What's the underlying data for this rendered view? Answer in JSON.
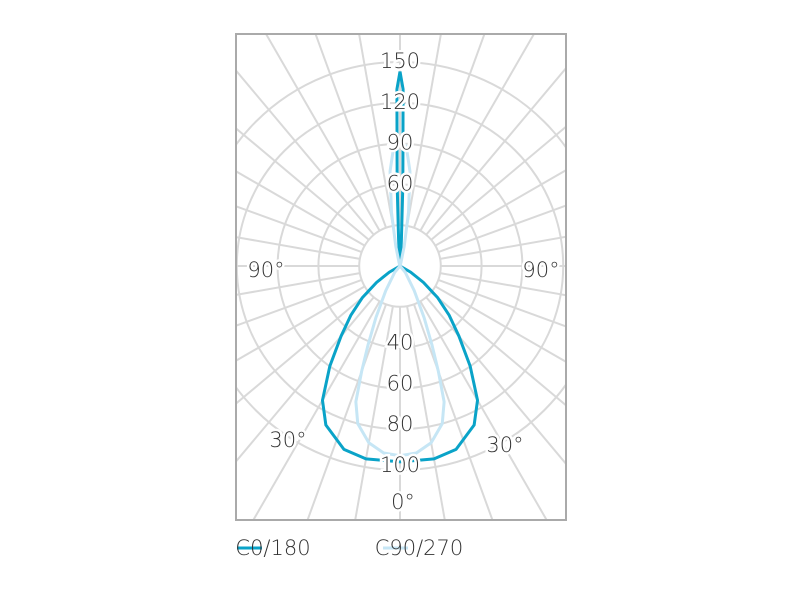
{
  "chart_data": {
    "type": "polar",
    "upper_rlim": [
      0,
      150
    ],
    "upper_rticks": [
      60,
      90,
      120,
      150
    ],
    "lower_rlim": [
      0,
      100
    ],
    "lower_rticks": [
      40,
      60,
      80,
      100
    ],
    "angle_labels": [
      "90°",
      "90°",
      "30°",
      "30°",
      "0°"
    ],
    "series": [
      {
        "name": "C0/180",
        "color": "#0aa3c8",
        "lower_angles": [
          0,
          10,
          17,
          25,
          30,
          35,
          40,
          45,
          50,
          55,
          60,
          70
        ],
        "lower_values": [
          96,
          96,
          94,
          86,
          76,
          60,
          45,
          34,
          24,
          14,
          6,
          0
        ],
        "upper_angles": [
          0,
          1,
          2,
          3,
          5,
          10
        ],
        "upper_values": [
          143,
          130,
          60,
          20,
          5,
          0
        ]
      },
      {
        "name": "C90/270",
        "color": "#c6e6f5",
        "lower_angles": [
          0,
          5,
          10,
          15,
          18,
          20,
          22,
          25,
          30,
          40,
          50
        ],
        "lower_values": [
          93,
          92,
          88,
          80,
          70,
          55,
          42,
          28,
          14,
          4,
          0
        ],
        "upper_angles": [
          0,
          3,
          6,
          9,
          12,
          15,
          20
        ],
        "upper_values": [
          92,
          88,
          70,
          40,
          15,
          3,
          0
        ]
      }
    ]
  }
}
